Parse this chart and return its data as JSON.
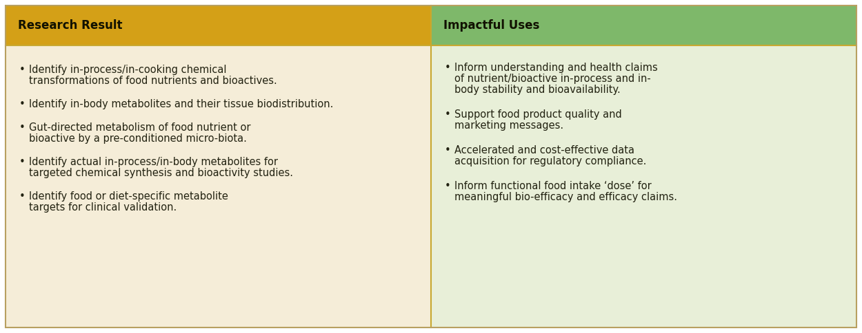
{
  "left_header": "Research Result",
  "right_header": "Impactful Uses",
  "left_header_bg": "#D4A017",
  "right_header_bg": "#7EB86A",
  "left_body_bg": "#F5EDD8",
  "right_body_bg": "#E8EFD8",
  "header_text_color": "#111100",
  "body_text_color": "#222211",
  "border_color": "#C8A830",
  "outer_border_color": "#B8A060",
  "left_bullets": [
    [
      "Identify in-process/in-cooking chemical",
      "transformations of food nutrients and bioactives."
    ],
    [
      "Identify in-body metabolites and their tissue biodistribution."
    ],
    [
      "Gut-directed metabolism of food nutrient or",
      "bioactive by a pre-conditioned micro-biota."
    ],
    [
      "Identify actual in-process/in-body metabolites for",
      "targeted chemical synthesis and bioactivity studies."
    ],
    [
      "Identify food or diet-specific metabolite",
      "targets for clinical validation."
    ]
  ],
  "right_bullets": [
    [
      "Inform understanding and health claims",
      "of nutrient/bioactive in-process and in-",
      "body stability and bioavailability."
    ],
    [
      "Support food product quality and",
      "marketing messages."
    ],
    [
      "Accelerated and cost-effective data",
      "acquisition for regulatory compliance."
    ],
    [
      "Inform functional food intake ‘dose’ for",
      "meaningful bio-efficacy and efficacy claims."
    ]
  ],
  "header_fontsize": 12,
  "body_fontsize": 10.5,
  "fig_width": 12.5,
  "fig_height": 4.84,
  "dpi": 100
}
